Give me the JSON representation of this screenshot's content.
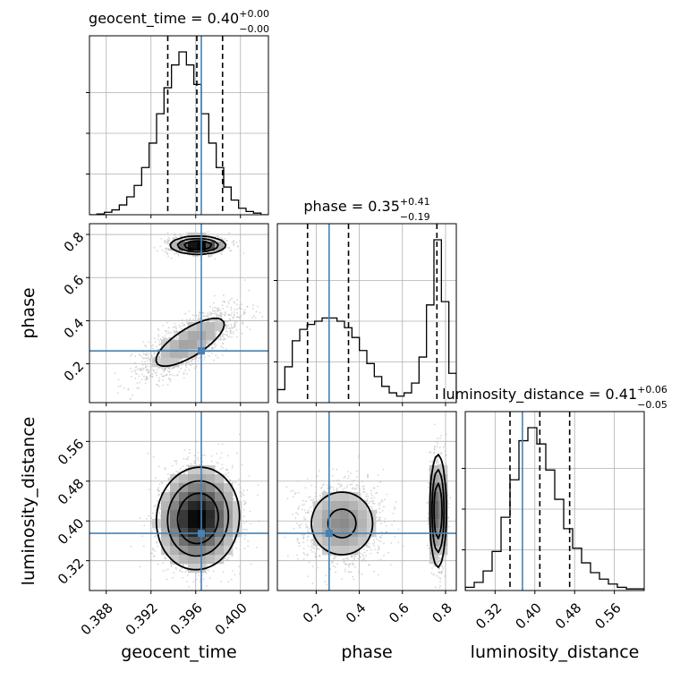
{
  "chart_data": {
    "type": "corner",
    "colors": {
      "truth": "#4682b4",
      "hist": "#000000",
      "density": "#000000",
      "samples": "#b4b4b4"
    },
    "params": [
      {
        "name": "geocent_time",
        "range": [
          0.3865,
          0.4025
        ],
        "ticks": [
          0.388,
          0.392,
          0.396,
          0.4
        ],
        "tick_labels": [
          "0.388",
          "0.392",
          "0.396",
          "0.400"
        ],
        "truth": 0.3965,
        "quantiles": [
          0.3935,
          0.3961,
          0.3984
        ],
        "median": 0.4,
        "plus": 0.0,
        "minus": 0.0
      },
      {
        "name": "phase",
        "range": [
          0.02,
          0.85
        ],
        "ticks": [
          0.2,
          0.4,
          0.6,
          0.8
        ],
        "tick_labels": [
          "0.2",
          "0.4",
          "0.6",
          "0.8"
        ],
        "truth": 0.26,
        "quantiles": [
          0.16,
          0.35,
          0.76
        ],
        "median": 0.35,
        "plus": 0.41,
        "minus": 0.19
      },
      {
        "name": "luminosity_distance",
        "range": [
          0.26,
          0.62
        ],
        "ticks": [
          0.32,
          0.4,
          0.48,
          0.56
        ],
        "tick_labels": [
          "0.32",
          "0.40",
          "0.48",
          "0.56"
        ],
        "truth": 0.375,
        "quantiles": [
          0.35,
          0.41,
          0.47
        ],
        "median": 0.41,
        "plus": 0.06,
        "minus": 0.05
      }
    ],
    "titles": [
      {
        "prefix": "geocent_time = 0.40",
        "sup": "+0.00",
        "sub": "−0.00"
      },
      {
        "prefix": "phase = 0.35",
        "sup": "+0.41",
        "sub": "−0.19"
      },
      {
        "prefix": "luminosity_distance = 0.41",
        "sup": "+0.06",
        "sub": "−0.05"
      }
    ],
    "histograms": [
      {
        "param": "geocent_time",
        "heights": [
          0,
          0.5,
          1.5,
          3,
          6,
          11,
          18,
          29,
          44,
          62,
          78,
          92,
          100,
          92,
          80,
          62,
          44,
          29,
          17,
          9,
          4,
          2,
          1,
          0
        ]
      },
      {
        "param": "phase",
        "heights": [
          8,
          22,
          38,
          45,
          48,
          50,
          52,
          52,
          50,
          46,
          40,
          32,
          24,
          16,
          10,
          6,
          4,
          6,
          12,
          28,
          60,
          100,
          62,
          18
        ]
      },
      {
        "param": "luminosity_distance",
        "heights": [
          2,
          5,
          12,
          24,
          45,
          68,
          92,
          100,
          90,
          74,
          56,
          38,
          26,
          17,
          11,
          7,
          4,
          2,
          1,
          1
        ]
      }
    ],
    "density_2d": [
      {
        "x": "geocent_time",
        "y": "phase",
        "components": [
          {
            "mx": 0.3962,
            "my": 0.75,
            "sx": 0.0012,
            "sy": 0.02,
            "rho": 0.0,
            "w": 0.4
          },
          {
            "mx": 0.3955,
            "my": 0.3,
            "sx": 0.0022,
            "sy": 0.08,
            "rho": 0.75,
            "w": 0.6
          }
        ]
      },
      {
        "x": "geocent_time",
        "y": "luminosity_distance",
        "components": [
          {
            "mx": 0.3962,
            "my": 0.405,
            "sx": 0.0018,
            "sy": 0.05,
            "rho": 0.05,
            "w": 1.0
          }
        ]
      },
      {
        "x": "phase",
        "y": "luminosity_distance",
        "components": [
          {
            "mx": 0.32,
            "my": 0.395,
            "sx": 0.09,
            "sy": 0.04,
            "rho": 0.0,
            "w": 0.6
          },
          {
            "mx": 0.765,
            "my": 0.42,
            "sx": 0.018,
            "sy": 0.055,
            "rho": 0.0,
            "w": 0.4
          }
        ]
      }
    ]
  }
}
